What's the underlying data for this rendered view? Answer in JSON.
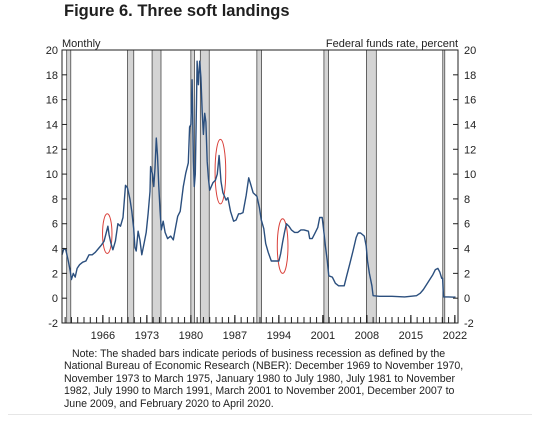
{
  "figure_title": "Figure 6. Three soft landings",
  "note": "Note: The shaded bars indicate periods of business recession as defined by the National Bureau of Economic Research (NBER): December 1969 to November 1970, November 1973 to March 1975, January 1980 to July 1980, July 1981 to November 1982, July 1990 to March 1991, March 2001 to November 2001, December 2007 to June 2009, and February 2020 to April 2020.",
  "chart_data": {
    "type": "line",
    "title": "Figure 6. Three soft landings",
    "left_axis_label": "Monthly",
    "right_axis_label": "Federal funds rate, percent",
    "x_tick_labels": [
      "1966",
      "1973",
      "1980",
      "1987",
      "1994",
      "2001",
      "2008",
      "2015",
      "2022"
    ],
    "x_tick_years": [
      1966,
      1973,
      1980,
      1987,
      1994,
      2001,
      2008,
      2015,
      2022
    ],
    "xlim": [
      1959.5,
      2022.5
    ],
    "ylim": [
      -2,
      20
    ],
    "y_ticks": [
      -2,
      0,
      2,
      4,
      6,
      8,
      10,
      12,
      14,
      16,
      18,
      20
    ],
    "grid": false,
    "line_color": "#2b4f7e",
    "recession_color": "#d4d4d4",
    "highlight_color": "#d9403a",
    "recessions": [
      [
        1960.25,
        1960.9
      ],
      [
        1969.92,
        1970.92
      ],
      [
        1973.83,
        1975.25
      ],
      [
        1980.0,
        1980.58
      ],
      [
        1981.5,
        1982.92
      ],
      [
        1990.5,
        1991.25
      ],
      [
        2001.17,
        2001.92
      ],
      [
        2007.92,
        2009.5
      ],
      [
        2020.08,
        2020.33
      ]
    ],
    "highlights": [
      {
        "center": [
          1966.7,
          5.2
        ],
        "radius": [
          0.75,
          1.6
        ]
      },
      {
        "center": [
          1984.7,
          10.2
        ],
        "radius": [
          0.85,
          2.6
        ]
      },
      {
        "center": [
          1994.6,
          4.2
        ],
        "radius": [
          0.85,
          2.2
        ]
      }
    ],
    "series": [
      {
        "values": [
          [
            1959.5,
            3.5
          ],
          [
            1959.8,
            4.0
          ],
          [
            1960.1,
            3.9
          ],
          [
            1960.5,
            3.0
          ],
          [
            1960.8,
            2.2
          ],
          [
            1961.0,
            1.5
          ],
          [
            1961.3,
            2.0
          ],
          [
            1961.6,
            1.7
          ],
          [
            1961.9,
            2.4
          ],
          [
            1962.3,
            2.7
          ],
          [
            1962.8,
            2.9
          ],
          [
            1963.3,
            3.0
          ],
          [
            1963.8,
            3.5
          ],
          [
            1964.3,
            3.5
          ],
          [
            1964.8,
            3.7
          ],
          [
            1965.3,
            4.0
          ],
          [
            1965.8,
            4.3
          ],
          [
            1966.2,
            4.6
          ],
          [
            1966.5,
            5.2
          ],
          [
            1966.8,
            5.8
          ],
          [
            1967.0,
            5.1
          ],
          [
            1967.3,
            4.4
          ],
          [
            1967.6,
            3.9
          ],
          [
            1968.0,
            4.6
          ],
          [
            1968.4,
            6.0
          ],
          [
            1968.8,
            5.8
          ],
          [
            1969.2,
            6.5
          ],
          [
            1969.6,
            9.1
          ],
          [
            1969.9,
            8.9
          ],
          [
            1970.3,
            8.0
          ],
          [
            1970.6,
            7.0
          ],
          [
            1970.9,
            5.6
          ],
          [
            1971.1,
            4.1
          ],
          [
            1971.3,
            3.8
          ],
          [
            1971.6,
            5.4
          ],
          [
            1971.9,
            4.7
          ],
          [
            1972.2,
            3.5
          ],
          [
            1972.6,
            4.5
          ],
          [
            1972.9,
            5.3
          ],
          [
            1973.2,
            6.8
          ],
          [
            1973.5,
            8.6
          ],
          [
            1973.6,
            10.6
          ],
          [
            1973.9,
            10.0
          ],
          [
            1974.1,
            9.0
          ],
          [
            1974.3,
            10.5
          ],
          [
            1974.5,
            12.9
          ],
          [
            1974.7,
            11.5
          ],
          [
            1974.9,
            9.0
          ],
          [
            1975.1,
            7.0
          ],
          [
            1975.3,
            5.5
          ],
          [
            1975.6,
            6.2
          ],
          [
            1975.9,
            5.3
          ],
          [
            1976.3,
            4.8
          ],
          [
            1976.8,
            5.0
          ],
          [
            1977.2,
            4.7
          ],
          [
            1977.6,
            5.8
          ],
          [
            1977.9,
            6.6
          ],
          [
            1978.3,
            7.0
          ],
          [
            1978.8,
            9.0
          ],
          [
            1979.2,
            10.1
          ],
          [
            1979.6,
            10.9
          ],
          [
            1979.8,
            13.8
          ],
          [
            1980.0,
            14.0
          ],
          [
            1980.2,
            17.6
          ],
          [
            1980.4,
            11.0
          ],
          [
            1980.55,
            9.0
          ],
          [
            1980.7,
            10.0
          ],
          [
            1980.9,
            15.8
          ],
          [
            1981.0,
            19.1
          ],
          [
            1981.2,
            17.2
          ],
          [
            1981.4,
            19.1
          ],
          [
            1981.6,
            17.8
          ],
          [
            1981.8,
            15.0
          ],
          [
            1982.0,
            13.2
          ],
          [
            1982.2,
            14.9
          ],
          [
            1982.4,
            14.2
          ],
          [
            1982.6,
            11.0
          ],
          [
            1982.8,
            9.6
          ],
          [
            1983.0,
            8.7
          ],
          [
            1983.5,
            9.3
          ],
          [
            1983.9,
            9.5
          ],
          [
            1984.2,
            10.0
          ],
          [
            1984.5,
            11.5
          ],
          [
            1984.8,
            9.4
          ],
          [
            1985.1,
            8.5
          ],
          [
            1985.6,
            7.9
          ],
          [
            1985.9,
            8.1
          ],
          [
            1986.3,
            7.0
          ],
          [
            1986.8,
            6.2
          ],
          [
            1987.2,
            6.3
          ],
          [
            1987.6,
            6.8
          ],
          [
            1987.9,
            6.8
          ],
          [
            1988.3,
            6.9
          ],
          [
            1988.8,
            8.3
          ],
          [
            1989.2,
            9.7
          ],
          [
            1989.5,
            9.2
          ],
          [
            1989.9,
            8.5
          ],
          [
            1990.5,
            8.2
          ],
          [
            1990.9,
            7.3
          ],
          [
            1991.2,
            6.3
          ],
          [
            1991.6,
            5.6
          ],
          [
            1991.9,
            4.4
          ],
          [
            1992.3,
            3.7
          ],
          [
            1992.8,
            3.0
          ],
          [
            1993.5,
            3.0
          ],
          [
            1994.0,
            3.0
          ],
          [
            1994.3,
            3.6
          ],
          [
            1994.6,
            4.5
          ],
          [
            1994.9,
            5.3
          ],
          [
            1995.2,
            6.0
          ],
          [
            1995.6,
            5.8
          ],
          [
            1996.0,
            5.5
          ],
          [
            1996.5,
            5.3
          ],
          [
            1997.0,
            5.3
          ],
          [
            1997.5,
            5.5
          ],
          [
            1998.0,
            5.5
          ],
          [
            1998.7,
            5.4
          ],
          [
            1998.9,
            4.8
          ],
          [
            1999.3,
            4.8
          ],
          [
            1999.7,
            5.2
          ],
          [
            2000.2,
            5.7
          ],
          [
            2000.5,
            6.5
          ],
          [
            2000.9,
            6.5
          ],
          [
            2001.1,
            5.6
          ],
          [
            2001.4,
            4.2
          ],
          [
            2001.7,
            3.0
          ],
          [
            2001.95,
            1.8
          ],
          [
            2002.5,
            1.7
          ],
          [
            2003.0,
            1.2
          ],
          [
            2003.5,
            1.0
          ],
          [
            2004.4,
            1.0
          ],
          [
            2004.8,
            1.8
          ],
          [
            2005.3,
            2.8
          ],
          [
            2005.8,
            3.8
          ],
          [
            2006.3,
            4.9
          ],
          [
            2006.6,
            5.25
          ],
          [
            2007.0,
            5.25
          ],
          [
            2007.6,
            5.0
          ],
          [
            2007.9,
            4.2
          ],
          [
            2008.1,
            3.0
          ],
          [
            2008.4,
            2.0
          ],
          [
            2008.8,
            1.0
          ],
          [
            2009.0,
            0.2
          ],
          [
            2010.0,
            0.15
          ],
          [
            2012.0,
            0.15
          ],
          [
            2014.0,
            0.1
          ],
          [
            2015.9,
            0.2
          ],
          [
            2016.5,
            0.4
          ],
          [
            2017.0,
            0.7
          ],
          [
            2017.5,
            1.1
          ],
          [
            2018.0,
            1.5
          ],
          [
            2018.5,
            1.9
          ],
          [
            2018.9,
            2.3
          ],
          [
            2019.3,
            2.4
          ],
          [
            2019.6,
            2.1
          ],
          [
            2019.9,
            1.6
          ],
          [
            2020.05,
            1.6
          ],
          [
            2020.2,
            0.1
          ],
          [
            2021.0,
            0.1
          ],
          [
            2021.9,
            0.08
          ],
          [
            2022.1,
            0.1
          ]
        ]
      }
    ]
  }
}
